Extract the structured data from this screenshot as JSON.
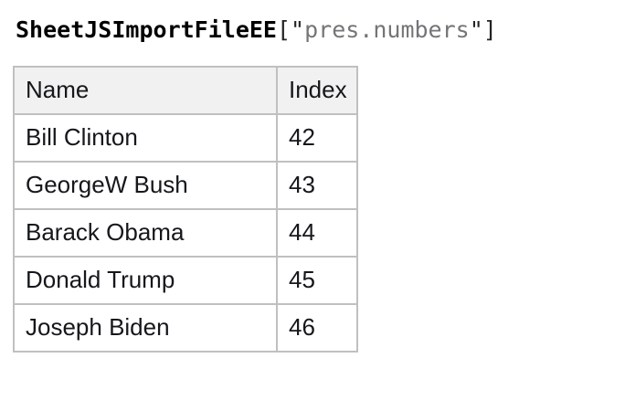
{
  "page": {
    "background_color": "#ffffff"
  },
  "title": {
    "identifier": "SheetJSImportFileEE",
    "punctuation_open": "[\"",
    "string_value": "pres.numbers",
    "punctuation_close": "\"]",
    "identifier_color": "#000000",
    "punctuation_color": "#222326",
    "string_color": "#757578"
  },
  "table": {
    "border_color": "#c0c0c0",
    "header_background": "#f1f1f1",
    "row_background": "#ffffff",
    "text_color": "#15171a",
    "columns": [
      {
        "label": "Name"
      },
      {
        "label": "Index"
      }
    ],
    "rows": [
      {
        "name": "Bill Clinton",
        "index": 42
      },
      {
        "name": "GeorgeW Bush",
        "index": 43
      },
      {
        "name": "Barack Obama",
        "index": 44
      },
      {
        "name": "Donald Trump",
        "index": 45
      },
      {
        "name": "Joseph Biden",
        "index": 46
      }
    ]
  }
}
